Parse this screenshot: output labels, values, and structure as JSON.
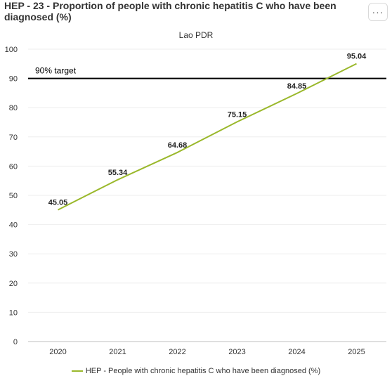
{
  "title": "HEP - 23 - Proportion of people with chronic hepatitis C who have been diagnosed (%)",
  "menu_icon": "ellipsis-icon",
  "menu_label": "···",
  "chart_data": {
    "type": "line",
    "title": "HEP - 23 - Proportion of people with chronic hepatitis C who have been diagnosed (%)",
    "subtitle": "Lao PDR",
    "categories": [
      "2020",
      "2021",
      "2022",
      "2023",
      "2024",
      "2025"
    ],
    "series": [
      {
        "name": "HEP - People with chronic hepatitis C who have been diagnosed (%)",
        "values": [
          45.05,
          55.34,
          64.68,
          75.15,
          84.85,
          95.04
        ],
        "labels": [
          "45.05",
          "55.34",
          "64.68",
          "75.15",
          "84.85",
          "95.04"
        ],
        "color": "#9ab82b"
      }
    ],
    "ylim": [
      0,
      100
    ],
    "yticks": [
      0,
      10,
      20,
      30,
      40,
      50,
      60,
      70,
      80,
      90,
      100
    ],
    "target": {
      "value": 90,
      "label": "90% target",
      "color": "#000000"
    },
    "grid": true,
    "legend": "bottom-center"
  }
}
